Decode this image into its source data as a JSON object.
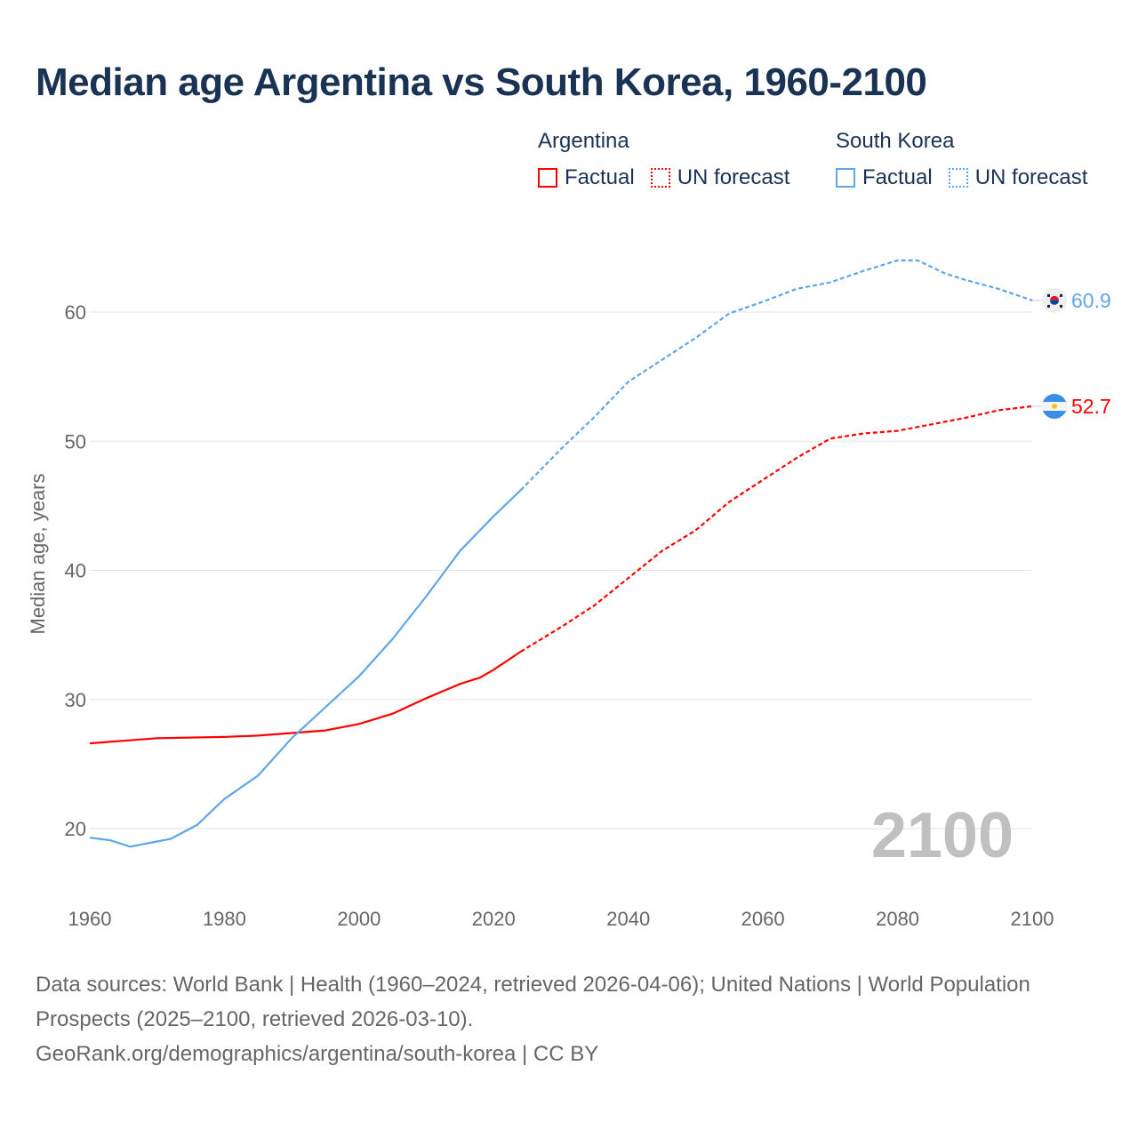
{
  "title": "Median age Argentina vs South Korea, 1960-2100",
  "legend": {
    "groups": [
      {
        "name": "Argentina",
        "color": "#ff0000",
        "factual": "Factual",
        "forecast": "UN forecast"
      },
      {
        "name": "South Korea",
        "color": "#5ea6ea",
        "factual": "Factual",
        "forecast": "UN forecast"
      }
    ]
  },
  "chart_data": {
    "type": "line",
    "title": "Median age Argentina vs South Korea, 1960-2100",
    "xlabel": "",
    "ylabel": "Median age, years",
    "xlim": [
      1960,
      2100
    ],
    "ylim": [
      15,
      66
    ],
    "xticks": [
      1960,
      1980,
      2000,
      2020,
      2040,
      2060,
      2080,
      2100
    ],
    "yticks": [
      20,
      30,
      40,
      50,
      60
    ],
    "grid": true,
    "current_year_label": "2100",
    "forecast_start": 2024,
    "series": [
      {
        "name": "Argentina",
        "color": "#ff0000",
        "end_label": "52.7",
        "x": [
          1960,
          1965,
          1970,
          1980,
          1985,
          1990,
          1995,
          2000,
          2005,
          2010,
          2015,
          2018,
          2020,
          2024,
          2030,
          2035,
          2040,
          2045,
          2050,
          2055,
          2060,
          2065,
          2070,
          2075,
          2080,
          2085,
          2090,
          2095,
          2100
        ],
        "y": [
          26.6,
          26.8,
          27.0,
          27.1,
          27.2,
          27.4,
          27.6,
          28.1,
          28.9,
          30.1,
          31.2,
          31.7,
          32.3,
          33.7,
          35.6,
          37.3,
          39.4,
          41.5,
          43.1,
          45.3,
          47.0,
          48.7,
          50.2,
          50.6,
          50.8,
          51.3,
          51.8,
          52.4,
          52.7
        ]
      },
      {
        "name": "South Korea",
        "color": "#5ea6ea",
        "end_label": "60.9",
        "x": [
          1960,
          1963,
          1966,
          1970,
          1972,
          1976,
          1980,
          1985,
          1990,
          1995,
          2000,
          2005,
          2010,
          2015,
          2020,
          2024,
          2030,
          2035,
          2040,
          2045,
          2050,
          2055,
          2060,
          2065,
          2070,
          2075,
          2080,
          2083,
          2087,
          2090,
          2095,
          2100
        ],
        "y": [
          19.3,
          19.1,
          18.6,
          19.0,
          19.2,
          20.3,
          22.3,
          24.1,
          27.0,
          29.4,
          31.8,
          34.7,
          38.0,
          41.5,
          44.2,
          46.2,
          49.4,
          51.9,
          54.6,
          56.3,
          58.0,
          59.9,
          60.8,
          61.8,
          62.3,
          63.2,
          64.0,
          64.0,
          63.0,
          62.5,
          61.8,
          60.9
        ]
      }
    ]
  },
  "footer": {
    "sources": "Data sources: World Bank | Health (1960–2024, retrieved 2026-04-06); United Nations | World Population Prospects (2025–2100, retrieved 2026-03-10).",
    "link": "GeoRank.org/demographics/argentina/south-korea | CC BY"
  }
}
